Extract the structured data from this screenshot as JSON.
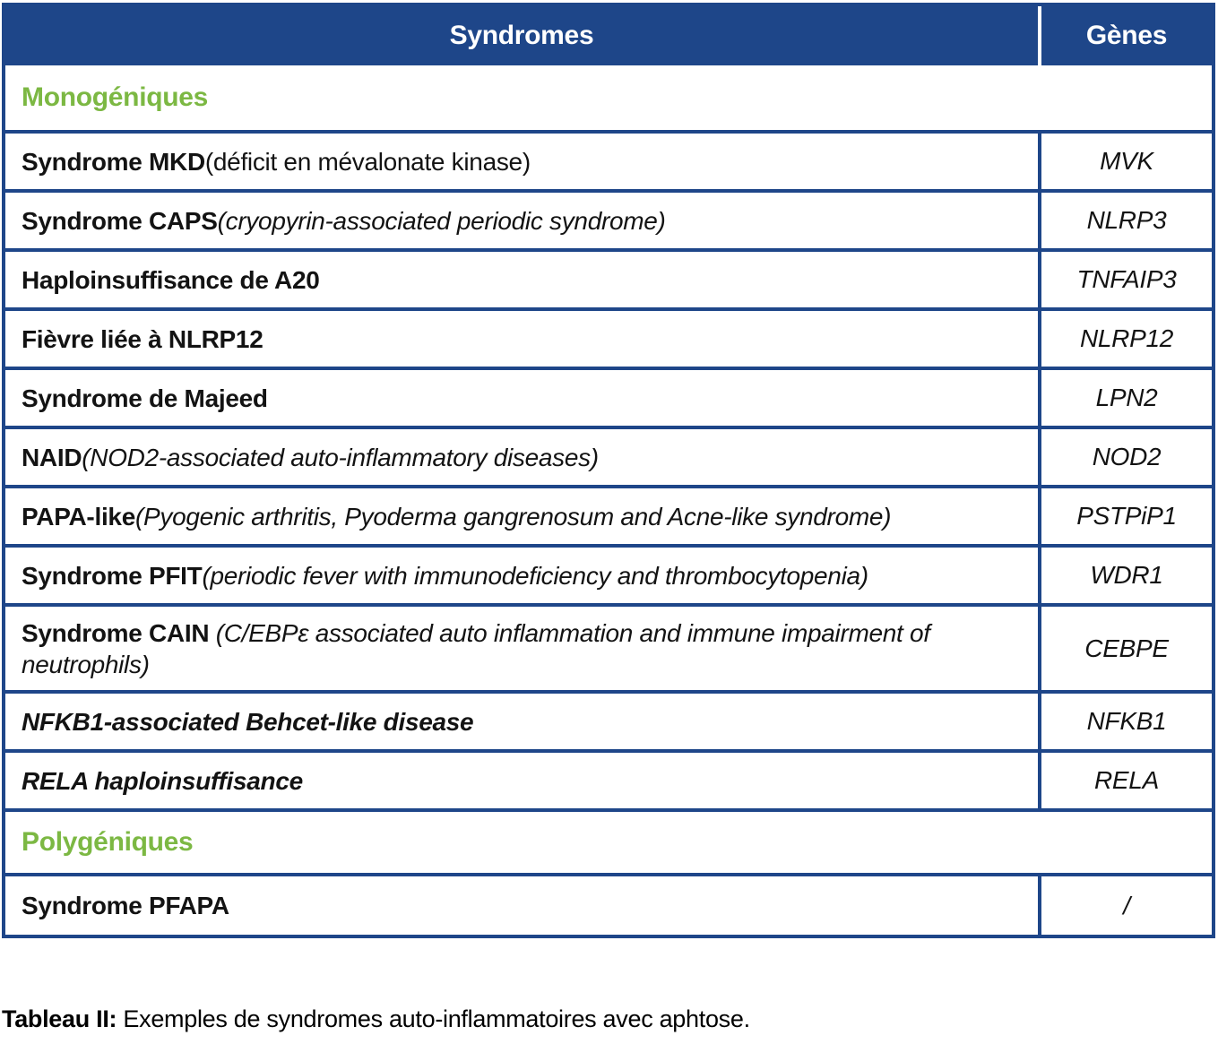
{
  "table": {
    "header": {
      "syndromes": "Syndromes",
      "genes": "Gènes"
    },
    "sections": [
      {
        "label": "Monogéniques"
      },
      {
        "label": "Polygéniques"
      }
    ],
    "rows": [
      {
        "bold": "Syndrome MKD",
        "rest": " (déficit en mévalonate kinase)",
        "gene": "MVK"
      },
      {
        "bold": "Syndrome CAPS",
        "rest": " (cryopyrin-associated periodic syndrome)",
        "gene": "NLRP3"
      },
      {
        "bold": "Haploinsuffisance de A20",
        "rest": "",
        "gene": "TNFAIP3"
      },
      {
        "bold": "Fièvre liée à NLRP12",
        "rest": "",
        "gene": "NLRP12"
      },
      {
        "bold": "Syndrome de Majeed",
        "rest": "",
        "gene": "LPN2"
      },
      {
        "bold": "NAID",
        "rest": " (NOD2-associated auto-inflammatory diseases)",
        "gene": "NOD2"
      },
      {
        "bold": "PAPA-like",
        "rest": " (Pyogenic arthritis, Pyoderma gangrenosum and Acne-like syndrome)",
        "gene": "PSTPiP1"
      },
      {
        "bold": "Syndrome PFIT",
        "rest": " (periodic fever with immunodeficiency and thrombocytopenia)",
        "gene": "WDR1"
      },
      {
        "bold": "Syndrome CAIN",
        "rest": " (C/EBPε associated auto inflammation and immune impairment of neutrophils)",
        "gene": "CEBPE"
      },
      {
        "bold": "NFKB1-associated Behcet-like disease",
        "rest": "",
        "gene": "NFKB1"
      },
      {
        "bold": "RELA haploinsuffisance",
        "rest": "",
        "gene": "RELA"
      },
      {
        "bold": "Syndrome PFAPA",
        "rest": "",
        "gene": "/"
      }
    ]
  },
  "caption": {
    "label": "Tableau II:",
    "text": " Exemples de syndromes auto-inflammatoires avec aphtose."
  },
  "colors": {
    "header_bg": "#1e4689",
    "border_blue": "#1e4689",
    "section_green": "#7cb843"
  }
}
